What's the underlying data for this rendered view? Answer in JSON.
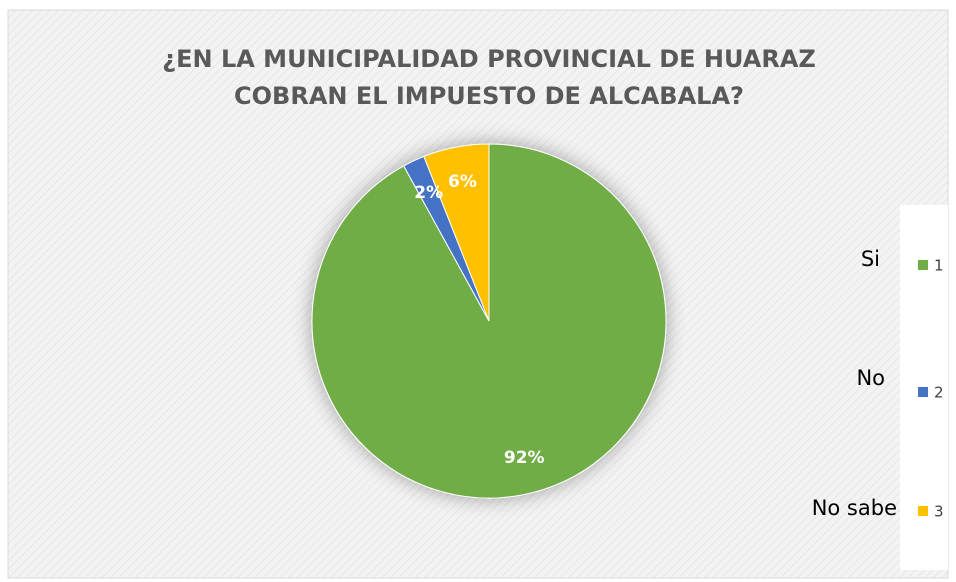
{
  "chart_data": {
    "type": "pie",
    "title": [
      "¿EN LA MUNICIPALIDAD PROVINCIAL DE HUARAZ",
      "COBRAN EL IMPUESTO DE ALCABALA?"
    ],
    "categories": [
      "1",
      "2",
      "3"
    ],
    "values": [
      92,
      2,
      6
    ],
    "value_labels": [
      "92%",
      "2%",
      "6%"
    ],
    "colors": [
      "#70ad47",
      "#4472c4",
      "#ffc000"
    ],
    "annotations": [
      "Si",
      "No",
      "No sabe"
    ],
    "legend": "right"
  }
}
